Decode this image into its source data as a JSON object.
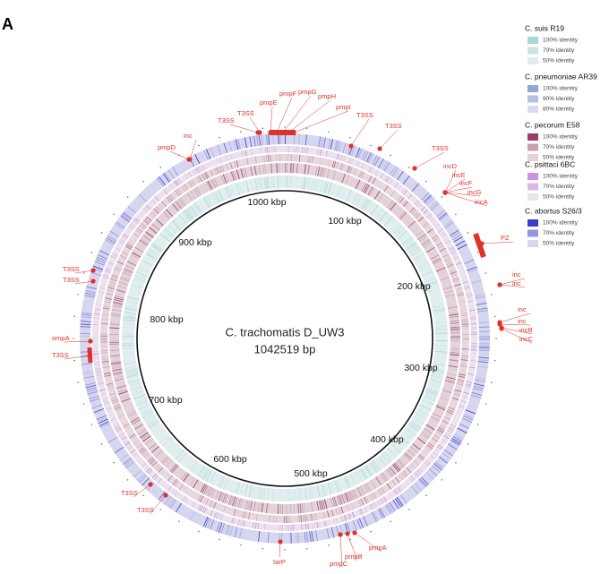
{
  "panel_label": "A",
  "center": {
    "title": "C. trachomatis D_UW3",
    "size": "1042519 bp"
  },
  "scale_labels": [
    "100 kbp",
    "200 kbp",
    "300 kbp",
    "400 kbp",
    "500 kbp",
    "600 kbp",
    "700 kbp",
    "800 kbp",
    "900 kbp",
    "1000 kbp"
  ],
  "legend": [
    {
      "name": "C. suis R19",
      "entries": [
        {
          "label": "100% identity",
          "color": "#a8d8d8"
        },
        {
          "label": "70% identity",
          "color": "#c8e4e2"
        },
        {
          "label": "50% identity",
          "color": "#e2eeee"
        }
      ]
    },
    {
      "name": "C. pneumoniae AR39",
      "entries": [
        {
          "label": "100% identity",
          "color": "#8fa8d8"
        },
        {
          "label": "90% identity",
          "color": "#b4c2e2"
        },
        {
          "label": "80% identity",
          "color": "#d6dcee"
        }
      ]
    },
    {
      "name": "C. pecorum E58",
      "entries": [
        {
          "label": "100% identity",
          "color": "#9c3c6c"
        },
        {
          "label": "70% identity",
          "color": "#c8a0b0"
        },
        {
          "label": "50% identity",
          "color": "#e2d2da"
        }
      ]
    },
    {
      "name": "C. psittaci 6BC",
      "entries": [
        {
          "label": "100% identity",
          "color": "#d090e0"
        },
        {
          "label": "70% identity",
          "color": "#dcb8e0"
        },
        {
          "label": "50% identity",
          "color": "#ece2ee"
        }
      ]
    },
    {
      "name": "C. abortus S26/3",
      "entries": [
        {
          "label": "100% identity",
          "color": "#3c3cd0"
        },
        {
          "label": "70% identity",
          "color": "#9494e0"
        },
        {
          "label": "50% identity",
          "color": "#d6d6ee"
        }
      ]
    }
  ],
  "annotations": [
    "pmpD",
    "inc",
    "T3SS",
    "T3SS",
    "pmpE",
    "pmpF",
    "pmpG",
    "pmpH",
    "pmpI",
    "T3SS",
    "T3SS",
    "T3SS",
    "incD",
    "incE",
    "incF",
    "incG",
    "incA",
    "PZ",
    "inc",
    "inc",
    "inc",
    "inc",
    "incB",
    "incC",
    "pmpA",
    "pmpB",
    "pmpC",
    "tarP",
    "T3SS",
    "T3SS",
    "ompA",
    "T3SS",
    "T3SS",
    "T3SS"
  ]
}
